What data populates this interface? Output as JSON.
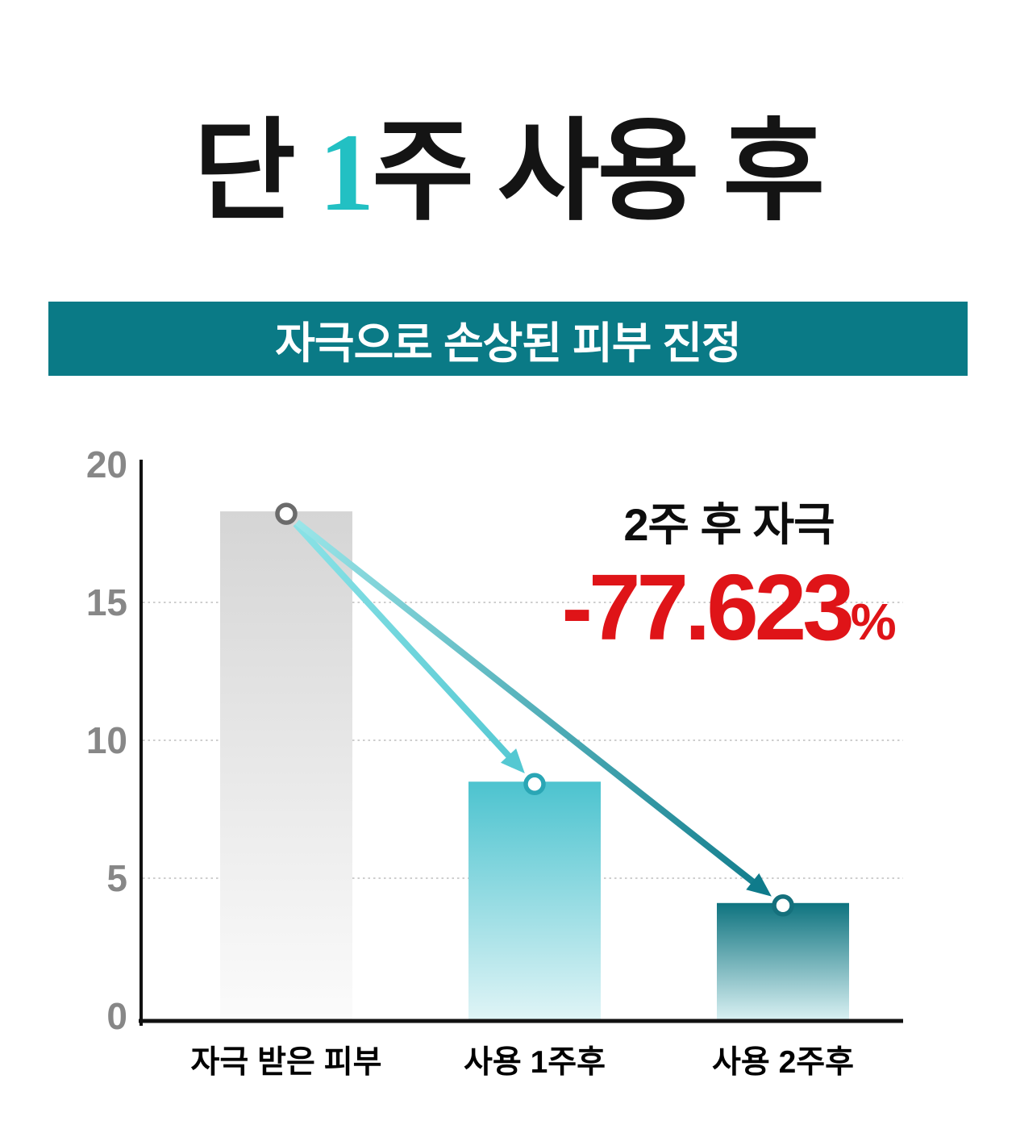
{
  "title": {
    "prefix": "단 ",
    "highlight": "1",
    "suffix": "주 사용 후",
    "highlight_color": "#22c0c3"
  },
  "banner": {
    "label": "자극으로 손상된 피부 진정",
    "bg_color": "#0a7a86",
    "text_color": "#ffffff"
  },
  "annotation": {
    "line1": "2주 후 자극",
    "value": "-77.623",
    "unit": "%",
    "value_color": "#df1418"
  },
  "chart_data": {
    "type": "bar",
    "title": "",
    "xlabel": "",
    "ylabel": "",
    "categories": [
      "자극 받은 피부",
      "사용 1주후",
      "사용 2주후"
    ],
    "values": [
      18.3,
      8.5,
      4.1
    ],
    "y_ticks": [
      0,
      5,
      10,
      15,
      20
    ],
    "ylim": [
      0,
      20
    ],
    "grid_values": [
      5,
      10,
      15
    ],
    "grid_style": "dotted",
    "legend": "none",
    "bar_colors_top": [
      "#d5d5d5",
      "#4cc3cf",
      "#0e737f"
    ],
    "bar_colors_bottom": [
      "#fbfbfb",
      "#dff4f6",
      "#d8f0f2"
    ],
    "marker_ring_colors": [
      "#6b6b6b",
      "#2aa6b5",
      "#15707c"
    ],
    "arrows": [
      {
        "from": 0,
        "to": 1,
        "color_start": "#8ae2e6",
        "color_end": "#54c8d2"
      },
      {
        "from": 0,
        "to": 2,
        "color_start": "#9ae6e9",
        "color_end": "#0f7b8b"
      }
    ],
    "axis_color": "#111111",
    "tick_label_color": "#878787",
    "x_label_color": "#000000",
    "grid_color": "#bdbdbd"
  }
}
